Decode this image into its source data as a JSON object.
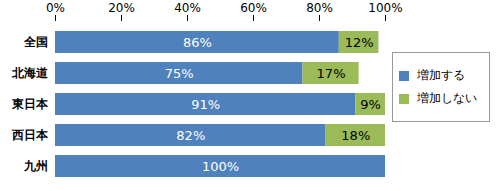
{
  "chart_data": {
    "type": "bar",
    "orientation": "horizontal",
    "stacked": true,
    "categories": [
      "全国",
      "北海道",
      "東日本",
      "西日本",
      "九州"
    ],
    "series": [
      {
        "name": "増加する",
        "color": "#4f81bd",
        "values": [
          86,
          75,
          91,
          82,
          100
        ],
        "value_labels": [
          "86%",
          "75%",
          "91%",
          "82%",
          "100%"
        ]
      },
      {
        "name": "増加しない",
        "color": "#9bbb59",
        "values": [
          12,
          17,
          9,
          18,
          0
        ],
        "value_labels": [
          "12%",
          "17%",
          "9%",
          "18%",
          null
        ]
      }
    ],
    "xlim": [
      0,
      100
    ],
    "xticks": [
      {
        "value": 0,
        "label": "0%"
      },
      {
        "value": 20,
        "label": "20%"
      },
      {
        "value": 40,
        "label": "40%"
      },
      {
        "value": 60,
        "label": "60%"
      },
      {
        "value": 80,
        "label": "80%"
      },
      {
        "value": 100,
        "label": "100%"
      }
    ],
    "grid": false,
    "legend": "right",
    "data_labels": true
  }
}
